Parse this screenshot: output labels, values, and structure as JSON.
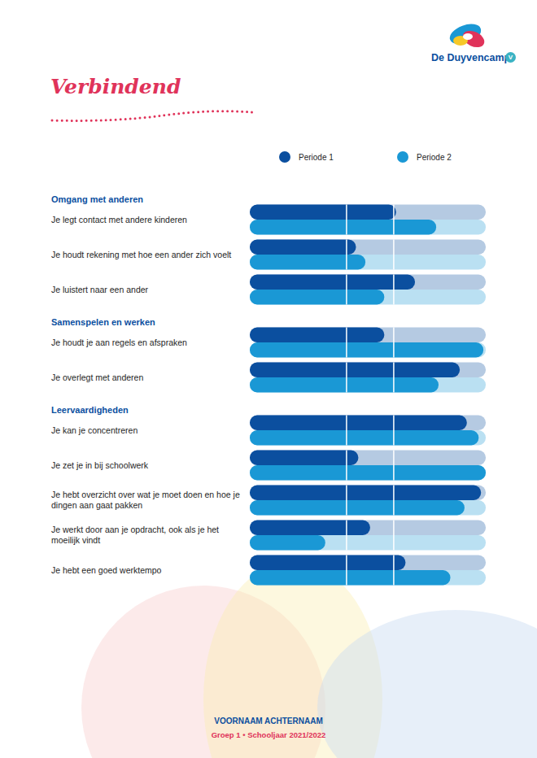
{
  "page": {
    "logo": "De Duyvencamp",
    "logo_badge": "V",
    "title": "Verbindend",
    "footer": {
      "name": "VOORNAAM ACHTERNAAM",
      "line": "Groep 1 • Schooljaar 2021/2022"
    }
  },
  "chart_data": {
    "type": "bar",
    "orientation": "horizontal",
    "legend": "top",
    "tick_labels": false,
    "grid": false,
    "xlim": [
      0,
      100
    ],
    "reference_lines": [
      41,
      61
    ],
    "groups": [
      "Omgang met anderen",
      "Omgang met anderen",
      "Omgang met anderen",
      "Samenspelen en werken",
      "Samenspelen en werken",
      "Leervaardigheden",
      "Leervaardigheden",
      "Leervaardigheden",
      "Leervaardigheden",
      "Leervaardigheden"
    ],
    "categories": [
      "Je legt contact met andere kinderen",
      "Je houdt rekening met hoe een ander zich voelt",
      "Je luistert naar een ander",
      "Je houdt je aan regels en afspraken",
      "Je overlegt met anderen",
      "Je kan je concentreren",
      "Je zet je in bij schoolwerk",
      "Je hebt overzicht over wat je moet doen en hoe je dingen aan gaat pakken",
      "Je werkt door aan je opdracht, ook als je het moeilijk vindt",
      "Je hebt een goed werktempo"
    ],
    "series": [
      {
        "name": "Periode 1",
        "color": "#0b4f9f",
        "values": [
          62,
          45,
          70,
          57,
          89,
          92,
          46,
          98,
          51,
          66
        ]
      },
      {
        "name": "Periode 2",
        "color": "#1a98d5",
        "values": [
          79,
          49,
          57,
          99,
          80,
          97,
          100,
          91,
          32,
          85
        ]
      }
    ]
  }
}
